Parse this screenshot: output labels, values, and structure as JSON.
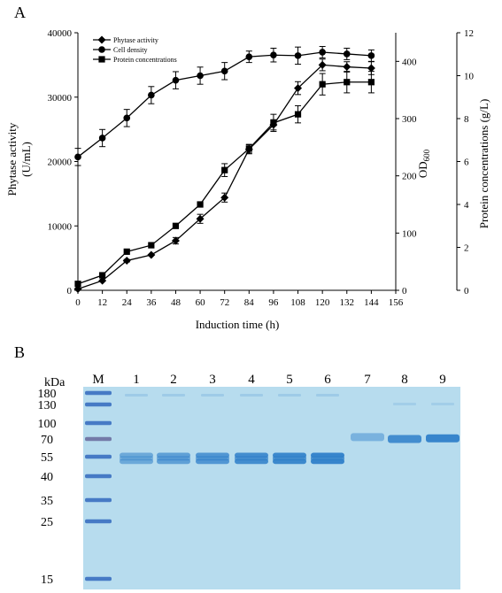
{
  "panel_a_letter": "A",
  "panel_b_letter": "B",
  "chart_data": {
    "type": "line",
    "xlabel": "Induction time (h)",
    "x_ticks": [
      0,
      12,
      24,
      36,
      48,
      60,
      72,
      84,
      96,
      108,
      120,
      132,
      144,
      156
    ],
    "xlim": [
      0,
      156
    ],
    "ylabel_left": "Phytase activity (U/mL)",
    "ylabel_left_lines": [
      "Phytase activity",
      "(U/mL)"
    ],
    "ylim_left": [
      0,
      40000
    ],
    "y_left_ticks": [
      0,
      10000,
      20000,
      30000,
      40000
    ],
    "ylabel_mid": "OD600",
    "ylabel_mid_main": "OD",
    "ylabel_mid_sub": "600",
    "ylim_mid": [
      0,
      450
    ],
    "y_mid_ticks": [
      0,
      100,
      200,
      300,
      400
    ],
    "ylabel_right": "Protein concentrations (g/L)",
    "ylim_right": [
      0,
      12
    ],
    "y_right_ticks": [
      0,
      2,
      4,
      6,
      8,
      10,
      12
    ],
    "legend_position": "top-left",
    "x": [
      0,
      12,
      24,
      36,
      48,
      60,
      72,
      84,
      96,
      108,
      120,
      132,
      144
    ],
    "series": [
      {
        "name": "Phytase activity",
        "marker": "diamond",
        "axis": "left",
        "values": [
          200,
          1500,
          4600,
          5500,
          7700,
          11100,
          14400,
          21900,
          25700,
          31400,
          35000,
          34700,
          34500
        ],
        "errors": [
          0,
          0,
          200,
          0,
          500,
          700,
          700,
          700,
          800,
          1000,
          900,
          800,
          1000
        ]
      },
      {
        "name": "Cell density",
        "marker": "circle",
        "axis": "mid",
        "values": [
          233,
          266,
          301,
          341,
          367,
          375,
          383,
          408,
          411,
          410,
          416,
          413,
          410
        ],
        "errors": [
          15,
          15,
          15,
          15,
          15,
          15,
          15,
          10,
          12,
          15,
          10,
          10,
          10
        ]
      },
      {
        "name": "Protein concentrations",
        "marker": "square",
        "axis": "right",
        "values": [
          0.3,
          0.7,
          1.8,
          2.1,
          3.0,
          4.0,
          5.6,
          6.6,
          7.8,
          8.2,
          9.6,
          9.7,
          9.7
        ],
        "errors": [
          0,
          0,
          0,
          0,
          0,
          0,
          0.3,
          0.2,
          0.4,
          0.4,
          0.5,
          0.5,
          0.5
        ]
      }
    ]
  },
  "gel": {
    "kda_label": "kDa",
    "lanes": [
      "M",
      "1",
      "2",
      "3",
      "4",
      "5",
      "6",
      "7",
      "8",
      "9"
    ],
    "marker_kda": [
      "180",
      "130",
      "100",
      "70",
      "55",
      "40",
      "35",
      "25",
      "15"
    ],
    "background_color": "#b7dcee",
    "band_color": "#2f7fc9",
    "marker_band_color": "#3a6fc0",
    "lane_bands_kda": {
      "1": [
        56,
        51
      ],
      "2": [
        56,
        51
      ],
      "3": [
        56,
        51
      ],
      "4": [
        56,
        51
      ],
      "5": [
        56,
        51
      ],
      "6": [
        56,
        51
      ],
      "7": [
        73
      ],
      "8": [
        70
      ],
      "9": [
        71
      ]
    },
    "lane_intensity": [
      0,
      0.55,
      0.65,
      0.75,
      0.85,
      0.9,
      0.95,
      0.45,
      0.85,
      0.95
    ]
  }
}
